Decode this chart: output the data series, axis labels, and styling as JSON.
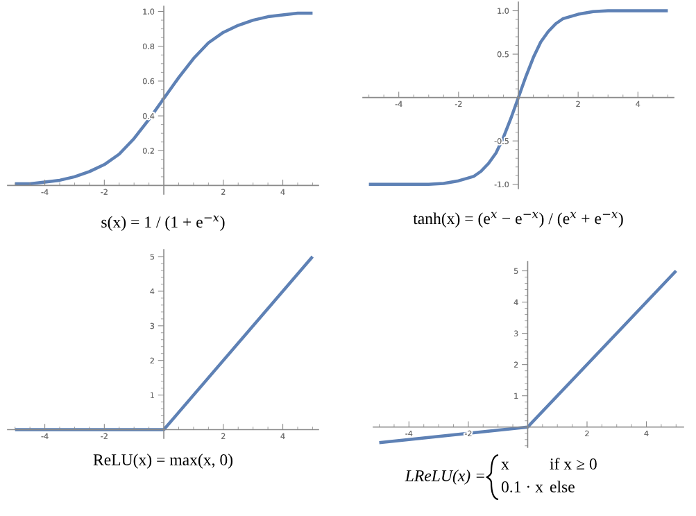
{
  "chart_data": [
    {
      "type": "line",
      "annotations": [
        "s(x) = 1 / (1 + e$^{−x}$)"
      ],
      "xlim": [
        -5.25,
        5.2
      ],
      "ylim": [
        -0.05,
        1.03
      ],
      "xticks": [
        {
          "value": -5,
          "label": null
        },
        {
          "value": -4.5,
          "label": null
        },
        -4,
        {
          "value": -3.5,
          "label": null
        },
        {
          "value": -3,
          "label": null
        },
        {
          "value": -2.5,
          "label": null
        },
        -2,
        {
          "value": -1.5,
          "label": null
        },
        {
          "value": -1,
          "label": null
        },
        {
          "value": -0.5,
          "label": null
        },
        {
          "value": 0.5,
          "label": null
        },
        {
          "value": 1,
          "label": null
        },
        {
          "value": 1.5,
          "label": null
        },
        2,
        {
          "value": 2.5,
          "label": null
        },
        {
          "value": 3,
          "label": null
        },
        {
          "value": 3.5,
          "label": null
        },
        4,
        {
          "value": 4.5,
          "label": null
        },
        {
          "value": 5,
          "label": null
        }
      ],
      "yticks": [
        {
          "value": 0.05,
          "label": null
        },
        {
          "value": 0.1,
          "label": null
        },
        {
          "value": 0.15,
          "label": null
        },
        0.2,
        {
          "value": 0.25,
          "label": null
        },
        {
          "value": 0.3,
          "label": null
        },
        {
          "value": 0.35,
          "label": null
        },
        0.4,
        {
          "value": 0.45,
          "label": null
        },
        {
          "value": 0.5,
          "label": null
        },
        {
          "value": 0.55,
          "label": null
        },
        0.6,
        {
          "value": 0.65,
          "label": null
        },
        {
          "value": 0.7,
          "label": null
        },
        {
          "value": 0.75,
          "label": null
        },
        0.8,
        {
          "value": 0.85,
          "label": null
        },
        {
          "value": 0.9,
          "label": null
        },
        {
          "value": 0.95,
          "label": null
        },
        {
          "value": 1,
          "label": "1.0"
        }
      ],
      "grid": false,
      "marker": "none",
      "line_style": "solid",
      "series": [
        {
          "color": "#5e81b5",
          "x": [
            -5,
            -4.5,
            -4,
            -3.5,
            -3,
            -2.5,
            -2,
            -1.5,
            -1,
            -0.5,
            0,
            0.5,
            1,
            1.5,
            2,
            2.5,
            3,
            3.5,
            4,
            4.5,
            5
          ],
          "values": [
            0.01,
            0.01,
            0.02,
            0.03,
            0.05,
            0.08,
            0.12,
            0.18,
            0.27,
            0.38,
            0.5,
            0.62,
            0.73,
            0.82,
            0.88,
            0.92,
            0.95,
            0.97,
            0.98,
            0.99,
            0.99
          ]
        }
      ]
    },
    {
      "type": "line",
      "annotations": [
        "tanh(x) = (e$^{x}$ − e$^{−x}$) / (e$^{x}$ + e$^{−x}$)"
      ],
      "xlim": [
        -5.2,
        5.2
      ],
      "ylim": [
        -1.05,
        1.1
      ],
      "xticks": [
        {
          "value": -5,
          "label": null
        },
        {
          "value": -4.5,
          "label": null
        },
        -4,
        {
          "value": -3.5,
          "label": null
        },
        {
          "value": -3,
          "label": null
        },
        {
          "value": -2.5,
          "label": null
        },
        -2,
        {
          "value": -1.5,
          "label": null
        },
        {
          "value": -1,
          "label": null
        },
        {
          "value": -0.5,
          "label": null
        },
        {
          "value": 0.5,
          "label": null
        },
        {
          "value": 1,
          "label": null
        },
        {
          "value": 1.5,
          "label": null
        },
        2,
        {
          "value": 2.5,
          "label": null
        },
        {
          "value": 3,
          "label": null
        },
        {
          "value": 3.5,
          "label": null
        },
        4,
        {
          "value": 4.5,
          "label": null
        },
        {
          "value": 5,
          "label": null
        }
      ],
      "yticks": [
        {
          "value": -1,
          "label": "-1.0"
        },
        {
          "value": -0.9,
          "label": null
        },
        {
          "value": -0.8,
          "label": null
        },
        {
          "value": -0.7,
          "label": null
        },
        {
          "value": -0.6,
          "label": null
        },
        -0.5,
        {
          "value": -0.4,
          "label": null
        },
        {
          "value": -0.3,
          "label": null
        },
        {
          "value": -0.2,
          "label": null
        },
        {
          "value": -0.1,
          "label": null
        },
        {
          "value": 0.1,
          "label": null
        },
        {
          "value": 0.2,
          "label": null
        },
        {
          "value": 0.3,
          "label": null
        },
        {
          "value": 0.4,
          "label": null
        },
        0.5,
        {
          "value": 0.6,
          "label": null
        },
        {
          "value": 0.7,
          "label": null
        },
        {
          "value": 0.8,
          "label": null
        },
        {
          "value": 0.9,
          "label": null
        },
        {
          "value": 1,
          "label": "1.0"
        }
      ],
      "grid": false,
      "marker": "none",
      "line_style": "solid",
      "series": [
        {
          "color": "#5e81b5",
          "x": [
            -5,
            -4,
            -3,
            -2.5,
            -2,
            -1.5,
            -1.25,
            -1,
            -0.75,
            -0.5,
            -0.25,
            0,
            0.25,
            0.5,
            0.75,
            1,
            1.25,
            1.5,
            2,
            2.5,
            3,
            4,
            5
          ],
          "values": [
            -1.0,
            -1.0,
            -1.0,
            -0.99,
            -0.96,
            -0.91,
            -0.85,
            -0.76,
            -0.64,
            -0.46,
            -0.24,
            0,
            0.24,
            0.46,
            0.64,
            0.76,
            0.85,
            0.91,
            0.96,
            0.99,
            1.0,
            1.0,
            1.0
          ]
        }
      ]
    },
    {
      "type": "line",
      "annotations": [
        "ReLU(x) = max(x, 0)"
      ],
      "xlim": [
        -5.25,
        5.2
      ],
      "ylim": [
        -0.25,
        5.2
      ],
      "xticks": [
        {
          "value": -5,
          "label": null
        },
        {
          "value": -4.5,
          "label": null
        },
        -4,
        {
          "value": -3.5,
          "label": null
        },
        {
          "value": -3,
          "label": null
        },
        {
          "value": -2.5,
          "label": null
        },
        -2,
        {
          "value": -1.5,
          "label": null
        },
        {
          "value": -1,
          "label": null
        },
        {
          "value": -0.5,
          "label": null
        },
        {
          "value": 0.5,
          "label": null
        },
        {
          "value": 1,
          "label": null
        },
        {
          "value": 1.5,
          "label": null
        },
        2,
        {
          "value": 2.5,
          "label": null
        },
        {
          "value": 3,
          "label": null
        },
        {
          "value": 3.5,
          "label": null
        },
        4,
        {
          "value": 4.5,
          "label": null
        },
        {
          "value": 5,
          "label": null
        }
      ],
      "yticks": [
        {
          "value": 0.2,
          "label": null
        },
        {
          "value": 0.4,
          "label": null
        },
        {
          "value": 0.6,
          "label": null
        },
        {
          "value": 0.8,
          "label": null
        },
        1,
        {
          "value": 1.2,
          "label": null
        },
        {
          "value": 1.4,
          "label": null
        },
        {
          "value": 1.6,
          "label": null
        },
        {
          "value": 1.8,
          "label": null
        },
        2,
        {
          "value": 2.2,
          "label": null
        },
        {
          "value": 2.4,
          "label": null
        },
        {
          "value": 2.6,
          "label": null
        },
        {
          "value": 2.8,
          "label": null
        },
        3,
        {
          "value": 3.2,
          "label": null
        },
        {
          "value": 3.4,
          "label": null
        },
        {
          "value": 3.6,
          "label": null
        },
        {
          "value": 3.8,
          "label": null
        },
        4,
        {
          "value": 4.2,
          "label": null
        },
        {
          "value": 4.4,
          "label": null
        },
        {
          "value": 4.6,
          "label": null
        },
        {
          "value": 4.8,
          "label": null
        },
        5
      ],
      "grid": false,
      "marker": "none",
      "line_style": "solid",
      "series": [
        {
          "color": "#5e81b5",
          "x": [
            -5,
            0,
            5
          ],
          "values": [
            0,
            0,
            5
          ]
        }
      ]
    },
    {
      "type": "line",
      "annotations": [
        "LReLU(x) =",
        "x",
        "if x ≥ 0",
        "0.1 · x",
        "else"
      ],
      "xlim": [
        -5.2,
        5.25
      ],
      "ylim": [
        -0.65,
        5.3
      ],
      "xticks": [
        {
          "value": -5,
          "label": null
        },
        {
          "value": -4.5,
          "label": null
        },
        -4,
        {
          "value": -3.5,
          "label": null
        },
        {
          "value": -3,
          "label": null
        },
        {
          "value": -2.5,
          "label": null
        },
        -2,
        {
          "value": -1.5,
          "label": null
        },
        {
          "value": -1,
          "label": null
        },
        {
          "value": -0.5,
          "label": null
        },
        {
          "value": 0.5,
          "label": null
        },
        {
          "value": 1,
          "label": null
        },
        {
          "value": 1.5,
          "label": null
        },
        2,
        {
          "value": 2.5,
          "label": null
        },
        {
          "value": 3,
          "label": null
        },
        {
          "value": 3.5,
          "label": null
        },
        4,
        {
          "value": 4.5,
          "label": null
        },
        {
          "value": 5,
          "label": null
        }
      ],
      "yticks": [
        {
          "value": -0.6,
          "label": null
        },
        {
          "value": -0.4,
          "label": null
        },
        {
          "value": -0.2,
          "label": null
        },
        {
          "value": 0.2,
          "label": null
        },
        {
          "value": 0.4,
          "label": null
        },
        {
          "value": 0.6,
          "label": null
        },
        {
          "value": 0.8,
          "label": null
        },
        1,
        {
          "value": 1.2,
          "label": null
        },
        {
          "value": 1.4,
          "label": null
        },
        {
          "value": 1.6,
          "label": null
        },
        {
          "value": 1.8,
          "label": null
        },
        2,
        {
          "value": 2.2,
          "label": null
        },
        {
          "value": 2.4,
          "label": null
        },
        {
          "value": 2.6,
          "label": null
        },
        {
          "value": 2.8,
          "label": null
        },
        3,
        {
          "value": 3.2,
          "label": null
        },
        {
          "value": 3.4,
          "label": null
        },
        {
          "value": 3.6,
          "label": null
        },
        {
          "value": 3.8,
          "label": null
        },
        4,
        {
          "value": 4.2,
          "label": null
        },
        {
          "value": 4.4,
          "label": null
        },
        {
          "value": 4.6,
          "label": null
        },
        {
          "value": 4.8,
          "label": null
        },
        5
      ],
      "grid": false,
      "marker": "none",
      "line_style": "solid",
      "series": [
        {
          "color": "#5e81b5",
          "x": [
            -5,
            0,
            5
          ],
          "values": [
            -0.5,
            0,
            5
          ]
        }
      ]
    }
  ]
}
